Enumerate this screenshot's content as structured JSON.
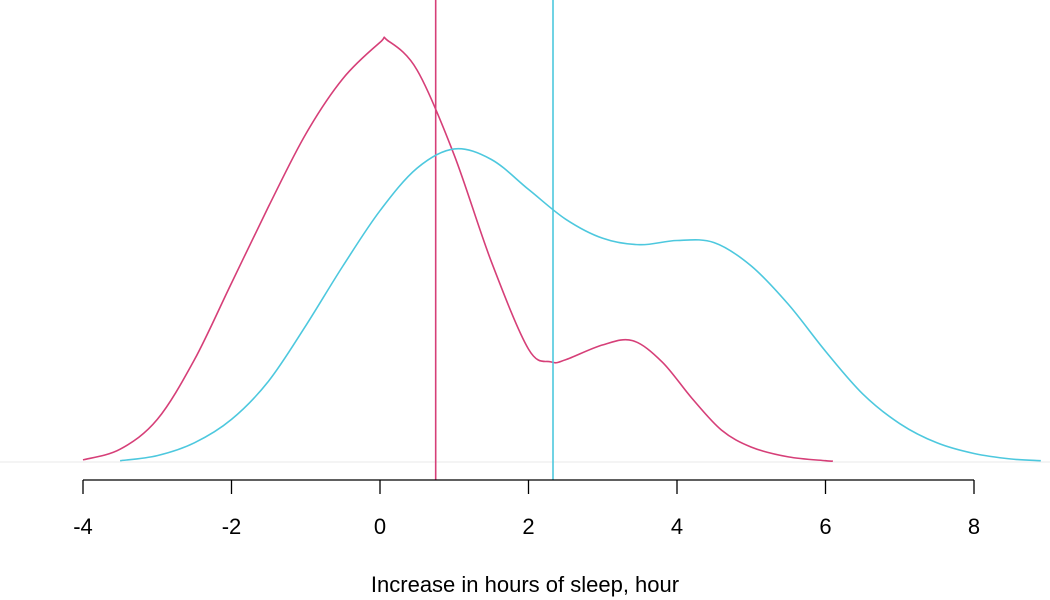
{
  "chart_data": {
    "type": "line",
    "title": "",
    "xlabel": "Increase in hours of sleep, hour",
    "ylabel": "",
    "xlim": [
      -4,
      8
    ],
    "x_ticks": [
      -4,
      -2,
      0,
      2,
      4,
      6,
      8
    ],
    "ylim": [
      0,
      1
    ],
    "grid": false,
    "legend": "none",
    "series": [
      {
        "color": "#d63f78",
        "mean": 0.75,
        "points": [
          [
            -4.0,
            0.005
          ],
          [
            -3.5,
            0.03
          ],
          [
            -3.0,
            0.1
          ],
          [
            -2.5,
            0.24
          ],
          [
            -2.0,
            0.42
          ],
          [
            -1.5,
            0.6
          ],
          [
            -1.0,
            0.77
          ],
          [
            -0.5,
            0.9
          ],
          [
            0.0,
            0.985
          ],
          [
            0.1,
            0.99
          ],
          [
            0.5,
            0.92
          ],
          [
            1.0,
            0.72
          ],
          [
            1.5,
            0.47
          ],
          [
            2.0,
            0.265
          ],
          [
            2.3,
            0.235
          ],
          [
            2.5,
            0.24
          ],
          [
            3.0,
            0.275
          ],
          [
            3.4,
            0.285
          ],
          [
            3.8,
            0.235
          ],
          [
            4.2,
            0.15
          ],
          [
            4.6,
            0.075
          ],
          [
            5.0,
            0.035
          ],
          [
            5.5,
            0.012
          ],
          [
            6.0,
            0.003
          ],
          [
            6.1,
            0.002
          ]
        ]
      },
      {
        "color": "#4dc8de",
        "mean": 2.33,
        "points": [
          [
            -3.5,
            0.003
          ],
          [
            -3.0,
            0.015
          ],
          [
            -2.5,
            0.045
          ],
          [
            -2.0,
            0.1
          ],
          [
            -1.5,
            0.19
          ],
          [
            -1.0,
            0.32
          ],
          [
            -0.5,
            0.46
          ],
          [
            0.0,
            0.59
          ],
          [
            0.5,
            0.69
          ],
          [
            1.0,
            0.735
          ],
          [
            1.5,
            0.71
          ],
          [
            2.0,
            0.64
          ],
          [
            2.5,
            0.57
          ],
          [
            3.0,
            0.525
          ],
          [
            3.5,
            0.51
          ],
          [
            4.0,
            0.52
          ],
          [
            4.5,
            0.515
          ],
          [
            5.0,
            0.46
          ],
          [
            5.5,
            0.37
          ],
          [
            6.0,
            0.26
          ],
          [
            6.5,
            0.16
          ],
          [
            7.0,
            0.09
          ],
          [
            7.5,
            0.045
          ],
          [
            8.0,
            0.02
          ],
          [
            8.5,
            0.007
          ],
          [
            8.9,
            0.003
          ]
        ]
      }
    ]
  }
}
